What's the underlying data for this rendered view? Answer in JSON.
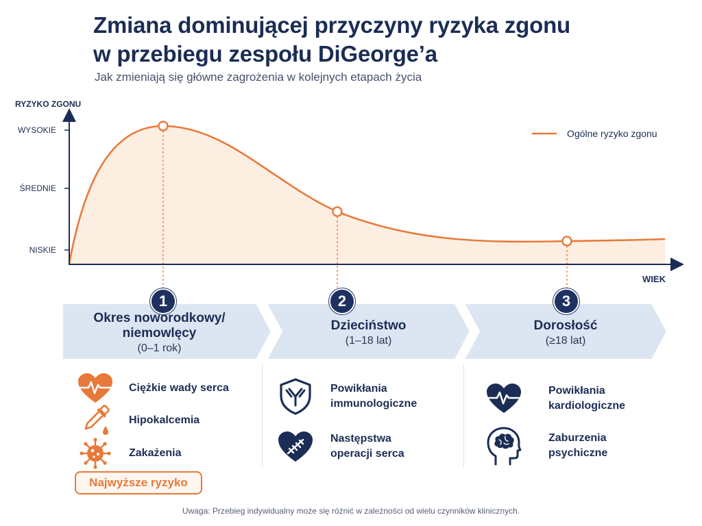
{
  "title": "Zmiana dominującej przyczyny ryzyka zgonu\nw przebiegu zespołu DiGeorge’a",
  "title_line1": "Zmiana dominującej przyczyny ryzyka zgonu",
  "title_line2": "w przebiegu zespołu DiGeorge’a",
  "subtitle": "Jak zmieniają się główne zagrożenia w kolejnych etapach życia",
  "colors": {
    "navy": "#1b2d54",
    "orange": "#e8793a",
    "fill": "#fdeee2",
    "banner": "#dce6f2"
  },
  "chart_data": {
    "type": "area",
    "ylabel": "RYZYKO ZGONU",
    "xlabel": "WIEK",
    "y_ticks": [
      "WYSOKIE",
      "ŚREDNIE",
      "NISKIE"
    ],
    "ylim": [
      "NISKIE",
      "WYSOKIE"
    ],
    "legend": {
      "position": "top-right"
    },
    "series": [
      {
        "name": "Ogólne ryzyko zgonu",
        "color": "#e8793a",
        "points": [
          {
            "x": "birth",
            "y": "below NISKIE"
          },
          {
            "x": "Okres noworodkowy/niemowlęcy",
            "y": "WYSOKIE",
            "marker": "1"
          },
          {
            "x": "Dzieciństwo",
            "y": "between ŚREDNIE and NISKIE",
            "marker": "2"
          },
          {
            "x": "Dorosłość",
            "y": "NISKIE",
            "marker": "3"
          }
        ]
      }
    ]
  },
  "stages": [
    {
      "number": "1",
      "title": "Okres noworodkowy/\nniemowlęcy",
      "age": "(0–1 rok)",
      "risks": [
        {
          "label": "Ciężkie wady serca",
          "icon": "heart-ecg-icon"
        },
        {
          "label": "Hipokalcemia",
          "icon": "dropper-icon"
        },
        {
          "label": "Zakażenia",
          "icon": "virus-icon"
        }
      ],
      "tag": "Najwyższe ryzyko"
    },
    {
      "number": "2",
      "title": "Dzieciństwo",
      "age": "(1–18 lat)",
      "risks": [
        {
          "label": "Powikłania\nimmunologiczne",
          "icon": "shield-antibody-icon"
        },
        {
          "label": "Następstwa\noperacji serca",
          "icon": "heart-suture-icon"
        }
      ]
    },
    {
      "number": "3",
      "title": "Dorosłość",
      "age": "(≥18 lat)",
      "risks": [
        {
          "label": "Powikłania\nkardiologiczne",
          "icon": "heart-ecg-icon"
        },
        {
          "label": "Zaburzenia\npsychiczne",
          "icon": "head-brain-icon"
        }
      ]
    }
  ],
  "note": "Uwaga: Przebieg indywidualny może się różnić w zależności od wielu czynników klinicznych."
}
